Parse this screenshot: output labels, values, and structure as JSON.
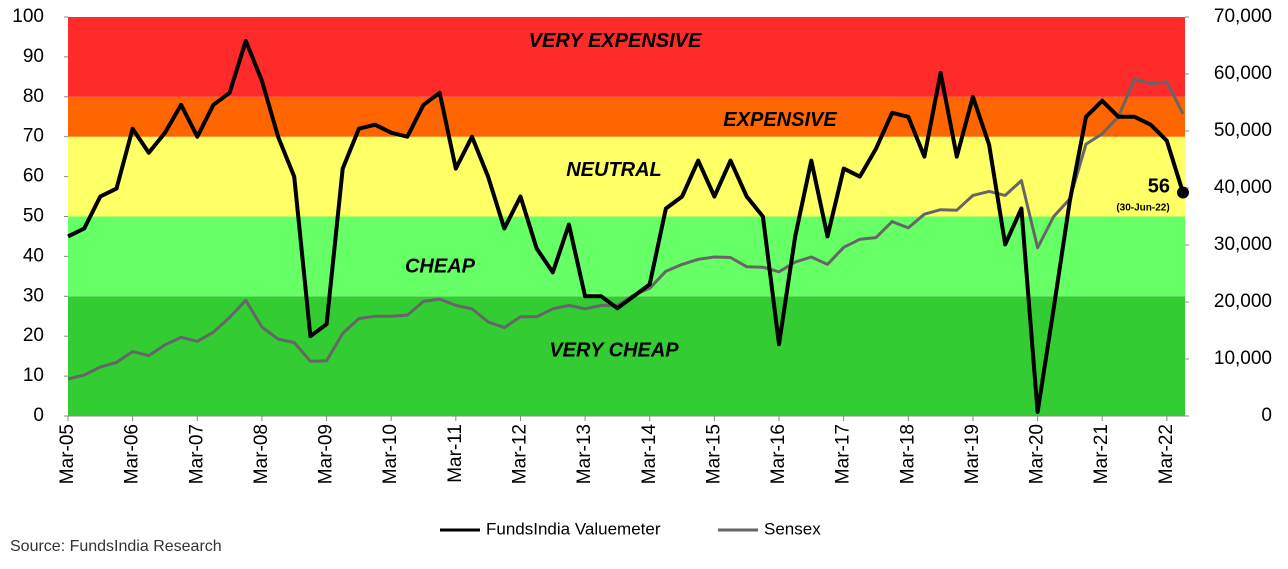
{
  "chart_data": {
    "type": "line",
    "source": "Source: FundsIndia Research",
    "categories": [
      "Mar-05",
      null,
      null,
      null,
      "Mar-06",
      null,
      null,
      null,
      "Mar-07",
      null,
      null,
      null,
      "Mar-08",
      null,
      null,
      null,
      "Mar-09",
      null,
      null,
      null,
      "Mar-10",
      null,
      null,
      null,
      "Mar-11",
      null,
      null,
      null,
      "Mar-12",
      null,
      null,
      null,
      "Mar-13",
      null,
      null,
      null,
      "Mar-14",
      null,
      null,
      null,
      "Mar-15",
      null,
      null,
      null,
      "Mar-16",
      null,
      null,
      null,
      "Mar-17",
      null,
      null,
      null,
      "Mar-18",
      null,
      null,
      null,
      "Mar-19",
      null,
      null,
      null,
      "Mar-20",
      null,
      null,
      null,
      "Mar-21",
      null,
      null,
      null,
      "Mar-22",
      null
    ],
    "series": [
      {
        "name": "FundsIndia Valuemeter",
        "color": "#000000",
        "values": [
          45,
          47,
          55,
          57,
          72,
          66,
          71,
          78,
          70,
          78,
          81,
          94,
          84,
          70,
          60,
          20,
          23,
          62,
          72,
          73,
          71,
          70,
          78,
          81,
          62,
          70,
          60,
          47,
          55,
          42,
          36,
          48,
          30,
          30,
          27,
          30,
          33,
          52,
          55,
          64,
          55,
          64,
          55,
          50,
          18,
          45,
          64,
          45,
          62,
          60,
          67,
          76,
          75,
          65,
          86,
          65,
          80,
          68,
          43,
          52,
          1,
          27,
          54,
          75,
          79,
          75,
          75,
          73,
          69,
          56
        ]
      },
      {
        "name": "Sensex",
        "color": "#666666",
        "axis": "y2",
        "values": [
          6500,
          7200,
          8600,
          9400,
          11300,
          10600,
          12500,
          13800,
          13100,
          14700,
          17300,
          20300,
          15600,
          13500,
          12900,
          9600,
          9700,
          14500,
          17100,
          17500,
          17500,
          17700,
          20100,
          20500,
          19400,
          18800,
          16500,
          15500,
          17400,
          17400,
          18800,
          19400,
          18800,
          19400,
          19400,
          21200,
          22400,
          25400,
          26600,
          27500,
          27900,
          27800,
          26200,
          26100,
          25300,
          27000,
          27900,
          26600,
          29600,
          31000,
          31300,
          34100,
          33000,
          35400,
          36200,
          36100,
          38700,
          39400,
          38700,
          41300,
          29500,
          35000,
          38100,
          47700,
          49500,
          52500,
          59100,
          58300,
          58600,
          53000
        ]
      }
    ],
    "bands": [
      {
        "from": 0,
        "to": 30,
        "label": "VERY CHEAP",
        "color": "#33cc33"
      },
      {
        "from": 30,
        "to": 50,
        "label": "CHEAP",
        "color": "#66ff66"
      },
      {
        "from": 50,
        "to": 70,
        "label": "NEUTRAL",
        "color": "#ffff66"
      },
      {
        "from": 70,
        "to": 80,
        "label": "EXPENSIVE",
        "color": "#ff6600"
      },
      {
        "from": 80,
        "to": 100,
        "label": "VERY EXPENSIVE",
        "color": "#ff2a2a"
      }
    ],
    "end_date_label": "(30-Jun-22)",
    "ylim": [
      0,
      100
    ],
    "yticks": [
      0,
      10,
      20,
      30,
      40,
      50,
      60,
      70,
      80,
      90,
      100
    ],
    "y2lim": [
      0,
      70000
    ],
    "y2ticks": [
      0,
      {
        "value": 10000,
        "label": "10,000"
      },
      {
        "value": 20000,
        "label": "20,000"
      },
      {
        "value": 30000,
        "label": "30,000"
      },
      {
        "value": 40000,
        "label": "40,000"
      },
      {
        "value": 50000,
        "label": "50,000"
      },
      {
        "value": 60000,
        "label": "60,000"
      },
      {
        "value": 70000,
        "label": "70,000"
      }
    ],
    "legend": "bottom"
  }
}
